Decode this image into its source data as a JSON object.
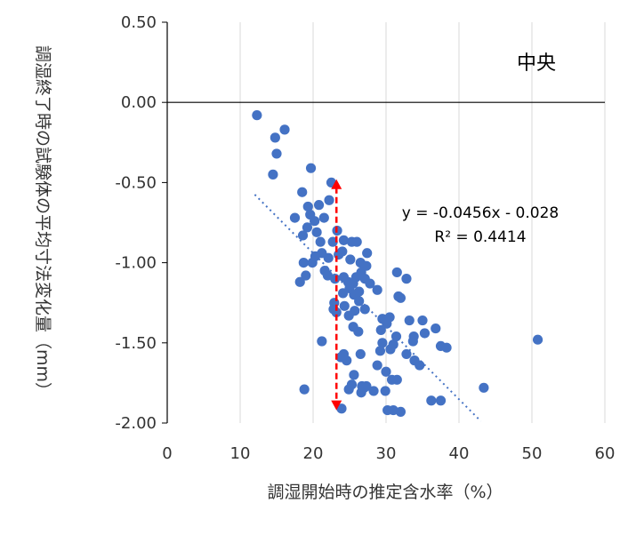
{
  "chart_data": {
    "type": "scatter",
    "title": "",
    "xlabel": "調湿開始時の推定含水率（%）",
    "ylabel": "調湿終了時の試験体の平均寸法変化量（mm）",
    "xlim": [
      0,
      60
    ],
    "ylim": [
      -2.0,
      0.5
    ],
    "xticks": [
      "0",
      "10",
      "20",
      "30",
      "40",
      "50",
      "60"
    ],
    "yticks": [
      "0.50",
      "0.00",
      "-0.50",
      "-1.00",
      "-1.50",
      "-2.00"
    ],
    "grid": "vertical",
    "annotation_label": "中央",
    "trendline": {
      "equation": "y = -0.0456x - 0.028",
      "r2": "R² = 0.4414",
      "slope": -0.0456,
      "intercept": -0.028,
      "x_range": [
        12,
        43
      ]
    },
    "range_arrow": {
      "x": 23.2,
      "y_top": -0.48,
      "y_bottom": -1.92,
      "color": "#ff0000"
    },
    "series": [
      {
        "color": "#4472c4",
        "points": [
          [
            12.3,
            -0.08
          ],
          [
            14.8,
            -0.22
          ],
          [
            16.1,
            -0.17
          ],
          [
            15.0,
            -0.32
          ],
          [
            14.5,
            -0.45
          ],
          [
            19.7,
            -0.41
          ],
          [
            22.5,
            -0.5
          ],
          [
            18.5,
            -0.56
          ],
          [
            19.3,
            -0.65
          ],
          [
            20.8,
            -0.64
          ],
          [
            17.5,
            -0.72
          ],
          [
            19.6,
            -0.7
          ],
          [
            20.2,
            -0.74
          ],
          [
            21.5,
            -0.72
          ],
          [
            22.2,
            -0.61
          ],
          [
            19.2,
            -0.78
          ],
          [
            20.5,
            -0.81
          ],
          [
            18.6,
            -0.83
          ],
          [
            21.0,
            -0.87
          ],
          [
            23.3,
            -0.8
          ],
          [
            22.7,
            -0.87
          ],
          [
            24.2,
            -0.86
          ],
          [
            25.3,
            -0.87
          ],
          [
            26.0,
            -0.87
          ],
          [
            27.4,
            -0.94
          ],
          [
            18.7,
            -1.0
          ],
          [
            19.9,
            -1.0
          ],
          [
            20.3,
            -0.96
          ],
          [
            21.2,
            -0.94
          ],
          [
            22.1,
            -0.97
          ],
          [
            23.5,
            -0.95
          ],
          [
            24.0,
            -0.93
          ],
          [
            25.1,
            -0.98
          ],
          [
            26.5,
            -1.0
          ],
          [
            27.3,
            -1.02
          ],
          [
            18.2,
            -1.12
          ],
          [
            19.0,
            -1.08
          ],
          [
            21.6,
            -1.05
          ],
          [
            22.0,
            -1.08
          ],
          [
            23.0,
            -1.1
          ],
          [
            24.2,
            -1.09
          ],
          [
            24.8,
            -1.12
          ],
          [
            25.5,
            -1.13
          ],
          [
            25.9,
            -1.09
          ],
          [
            26.6,
            -1.06
          ],
          [
            27.1,
            -1.1
          ],
          [
            27.8,
            -1.13
          ],
          [
            31.5,
            -1.06
          ],
          [
            32.8,
            -1.1
          ],
          [
            24.1,
            -1.19
          ],
          [
            25.0,
            -1.16
          ],
          [
            25.6,
            -1.2
          ],
          [
            26.3,
            -1.18
          ],
          [
            28.8,
            -1.17
          ],
          [
            31.7,
            -1.21
          ],
          [
            32.0,
            -1.22
          ],
          [
            22.9,
            -1.25
          ],
          [
            22.8,
            -1.29
          ],
          [
            24.3,
            -1.27
          ],
          [
            26.3,
            -1.24
          ],
          [
            25.7,
            -1.3
          ],
          [
            27.1,
            -1.29
          ],
          [
            29.5,
            -1.35
          ],
          [
            30.5,
            -1.34
          ],
          [
            30.1,
            -1.38
          ],
          [
            33.2,
            -1.36
          ],
          [
            35.0,
            -1.36
          ],
          [
            23.2,
            -1.31
          ],
          [
            24.9,
            -1.33
          ],
          [
            25.5,
            -1.4
          ],
          [
            26.2,
            -1.43
          ],
          [
            29.3,
            -1.42
          ],
          [
            31.4,
            -1.46
          ],
          [
            33.8,
            -1.46
          ],
          [
            35.3,
            -1.44
          ],
          [
            36.8,
            -1.41
          ],
          [
            21.2,
            -1.49
          ],
          [
            29.5,
            -1.5
          ],
          [
            31.0,
            -1.51
          ],
          [
            33.7,
            -1.49
          ],
          [
            37.5,
            -1.52
          ],
          [
            38.3,
            -1.53
          ],
          [
            50.8,
            -1.48
          ],
          [
            29.2,
            -1.55
          ],
          [
            30.6,
            -1.54
          ],
          [
            32.8,
            -1.57
          ],
          [
            26.5,
            -1.57
          ],
          [
            24.2,
            -1.57
          ],
          [
            23.8,
            -1.59
          ],
          [
            24.6,
            -1.61
          ],
          [
            33.9,
            -1.61
          ],
          [
            34.6,
            -1.64
          ],
          [
            28.8,
            -1.64
          ],
          [
            30.0,
            -1.68
          ],
          [
            25.6,
            -1.7
          ],
          [
            30.8,
            -1.73
          ],
          [
            31.5,
            -1.73
          ],
          [
            25.3,
            -1.76
          ],
          [
            24.9,
            -1.79
          ],
          [
            26.7,
            -1.77
          ],
          [
            27.0,
            -1.78
          ],
          [
            27.3,
            -1.77
          ],
          [
            28.3,
            -1.8
          ],
          [
            29.9,
            -1.8
          ],
          [
            26.6,
            -1.81
          ],
          [
            18.8,
            -1.79
          ],
          [
            43.4,
            -1.78
          ],
          [
            36.2,
            -1.86
          ],
          [
            37.5,
            -1.86
          ],
          [
            23.9,
            -1.91
          ],
          [
            30.2,
            -1.92
          ],
          [
            31.0,
            -1.92
          ],
          [
            32.0,
            -1.93
          ]
        ]
      }
    ]
  }
}
